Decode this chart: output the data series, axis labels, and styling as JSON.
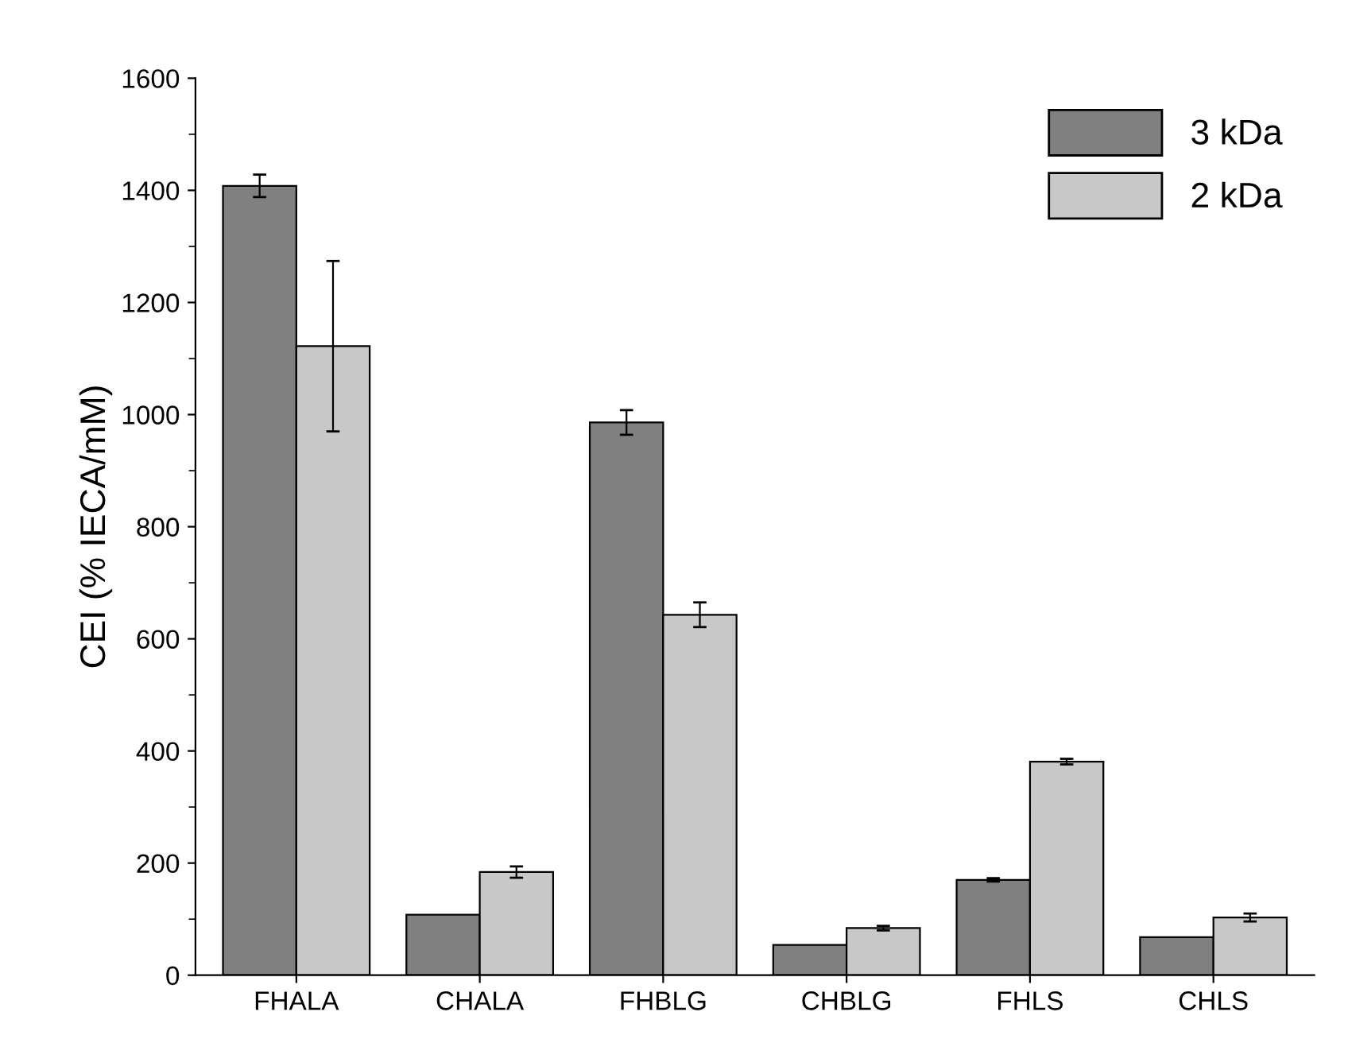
{
  "chart_data": {
    "type": "bar",
    "ylabel": "CEI (% IECA/mM)",
    "categories": [
      "FHALA",
      "CHALA",
      "FHBLG",
      "CHBLG",
      "FHLS",
      "CHLS"
    ],
    "series": [
      {
        "name": "3 kDa",
        "color": "#808080",
        "values": [
          1408,
          108,
          986,
          54,
          170,
          68
        ],
        "errors": [
          20,
          null,
          22,
          null,
          3,
          null
        ]
      },
      {
        "name": "2 kDa",
        "color": "#c8c8c8",
        "values": [
          1122,
          184,
          643,
          84,
          381,
          103
        ],
        "errors": [
          152,
          10,
          22,
          4,
          5,
          7
        ]
      }
    ],
    "ylim": [
      0,
      1600
    ],
    "yticks": [
      0,
      200,
      400,
      600,
      800,
      1000,
      1200,
      1400,
      1600
    ],
    "grid": false,
    "legend": "top right"
  }
}
